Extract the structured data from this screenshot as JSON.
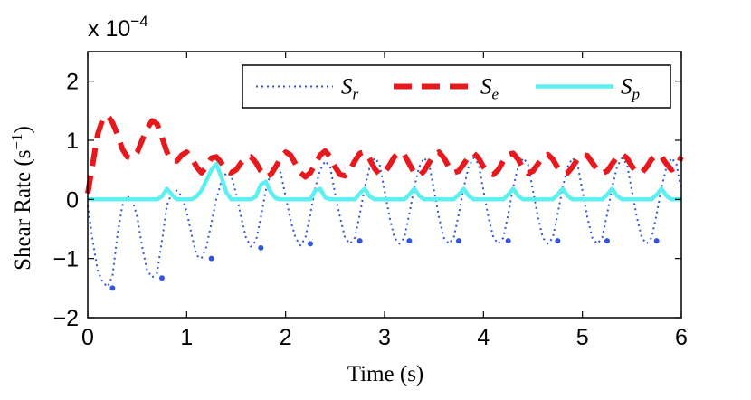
{
  "chart_data": {
    "type": "line",
    "xlabel": "Time (s)",
    "ylabel": "Shear Rate (s",
    "ylabel_sup": "−1",
    "ylabel_close": ")",
    "exponent_label": "x 10",
    "exponent_power": "−4",
    "xlim": [
      0,
      6
    ],
    "ylim": [
      -2,
      2.5
    ],
    "x_ticks": [
      0,
      1,
      2,
      3,
      4,
      5,
      6
    ],
    "x_tick_labels": [
      "0",
      "1",
      "2",
      "3",
      "4",
      "5",
      "6"
    ],
    "y_ticks": [
      -2,
      -1,
      0,
      1,
      2
    ],
    "y_tick_labels": [
      "−2",
      "−1",
      "0",
      "1",
      "2"
    ],
    "grid": false,
    "legend_position": "top-right",
    "series": [
      {
        "name": "S",
        "subscript": "r",
        "style": "dotted",
        "color": "#3355dd",
        "x": [
          0.0,
          0.05,
          0.1,
          0.15,
          0.2,
          0.25,
          0.3,
          0.35,
          0.4,
          0.45,
          0.5,
          0.55,
          0.6,
          0.65,
          0.7,
          0.75,
          0.8,
          0.85,
          0.9,
          0.95,
          1.0,
          1.05,
          1.1,
          1.15,
          1.2,
          1.25,
          1.3,
          1.35,
          1.4,
          1.45,
          1.5,
          1.55,
          1.6,
          1.65,
          1.7,
          1.75,
          1.8,
          1.85,
          1.9,
          1.95,
          2.0,
          2.05,
          2.1,
          2.15,
          2.2,
          2.25,
          2.3,
          2.35,
          2.4,
          2.45,
          2.5,
          2.55,
          2.6,
          2.65,
          2.7,
          2.75,
          2.8,
          2.85,
          2.9,
          2.95,
          3.0,
          3.05,
          3.1,
          3.15,
          3.2,
          3.25,
          3.3,
          3.35,
          3.4,
          3.45,
          3.5,
          3.55,
          3.6,
          3.65,
          3.7,
          3.75,
          3.8,
          3.85,
          3.9,
          3.95,
          4.0,
          4.05,
          4.1,
          4.15,
          4.2,
          4.25,
          4.3,
          4.35,
          4.4,
          4.45,
          4.5,
          4.55,
          4.6,
          4.65,
          4.7,
          4.75,
          4.8,
          4.85,
          4.9,
          4.95,
          5.0,
          5.05,
          5.1,
          5.15,
          5.2,
          5.25,
          5.3,
          5.35,
          5.4,
          5.45,
          5.5,
          5.55,
          5.6,
          5.65,
          5.7,
          5.75,
          5.8,
          5.85,
          5.9,
          5.95,
          6.0
        ],
        "values": [
          -0.1,
          -0.7,
          -1.2,
          -1.4,
          -1.48,
          -1.3,
          -0.6,
          -0.1,
          0.05,
          0.0,
          -0.3,
          -0.8,
          -1.2,
          -1.32,
          -1.25,
          -0.7,
          -0.1,
          0.1,
          0.15,
          0.05,
          -0.2,
          -0.6,
          -0.95,
          -1.0,
          -0.8,
          -0.4,
          0.0,
          0.3,
          0.45,
          0.4,
          0.1,
          -0.3,
          -0.65,
          -0.8,
          -0.7,
          -0.3,
          0.15,
          0.45,
          0.55,
          0.45,
          0.05,
          -0.35,
          -0.65,
          -0.78,
          -0.65,
          -0.25,
          0.2,
          0.5,
          0.65,
          0.55,
          0.1,
          -0.3,
          -0.65,
          -0.75,
          -0.65,
          -0.25,
          0.2,
          0.55,
          0.7,
          0.6,
          0.15,
          -0.3,
          -0.65,
          -0.75,
          -0.65,
          -0.25,
          0.2,
          0.55,
          0.7,
          0.6,
          0.15,
          -0.3,
          -0.65,
          -0.75,
          -0.65,
          -0.25,
          0.2,
          0.55,
          0.7,
          0.6,
          0.15,
          -0.3,
          -0.65,
          -0.75,
          -0.65,
          -0.25,
          0.2,
          0.55,
          0.7,
          0.6,
          0.15,
          -0.3,
          -0.65,
          -0.75,
          -0.65,
          -0.25,
          0.2,
          0.55,
          0.7,
          0.6,
          0.15,
          -0.3,
          -0.65,
          -0.75,
          -0.65,
          -0.25,
          0.2,
          0.55,
          0.7,
          0.6,
          0.15,
          -0.3,
          -0.65,
          -0.75,
          -0.65,
          -0.25,
          0.2,
          0.55,
          0.7,
          0.6,
          0.15
        ]
      },
      {
        "name": "S",
        "subscript": "e",
        "style": "dashed",
        "color": "#e8191c",
        "x": [
          0.0,
          0.05,
          0.1,
          0.15,
          0.2,
          0.25,
          0.3,
          0.35,
          0.4,
          0.45,
          0.5,
          0.55,
          0.6,
          0.65,
          0.7,
          0.75,
          0.8,
          0.85,
          0.9,
          0.95,
          1.0,
          1.05,
          1.1,
          1.15,
          1.2,
          1.25,
          1.3,
          1.35,
          1.4,
          1.45,
          1.5,
          1.55,
          1.6,
          1.65,
          1.7,
          1.75,
          1.8,
          1.85,
          1.9,
          1.95,
          2.0,
          2.05,
          2.1,
          2.15,
          2.2,
          2.25,
          2.3,
          2.35,
          2.4,
          2.45,
          2.5,
          2.55,
          2.6,
          2.65,
          2.7,
          2.75,
          2.8,
          2.85,
          2.9,
          2.95,
          3.0,
          3.05,
          3.1,
          3.15,
          3.2,
          3.25,
          3.3,
          3.35,
          3.4,
          3.45,
          3.5,
          3.55,
          3.6,
          3.65,
          3.7,
          3.75,
          3.8,
          3.85,
          3.9,
          3.95,
          4.0,
          4.05,
          4.1,
          4.15,
          4.2,
          4.25,
          4.3,
          4.35,
          4.4,
          4.45,
          4.5,
          4.55,
          4.6,
          4.65,
          4.7,
          4.75,
          4.8,
          4.85,
          4.9,
          4.95,
          5.0,
          5.05,
          5.1,
          5.15,
          5.2,
          5.25,
          5.3,
          5.35,
          5.4,
          5.45,
          5.5,
          5.55,
          5.6,
          5.65,
          5.7,
          5.75,
          5.8,
          5.85,
          5.9,
          5.95,
          6.0
        ],
        "values": [
          0.1,
          0.6,
          1.1,
          1.35,
          1.42,
          1.3,
          1.1,
          0.85,
          0.72,
          0.7,
          0.8,
          1.0,
          1.2,
          1.33,
          1.28,
          1.05,
          0.8,
          0.65,
          0.65,
          0.75,
          0.8,
          0.7,
          0.55,
          0.45,
          0.55,
          0.7,
          0.72,
          0.62,
          0.5,
          0.45,
          0.5,
          0.62,
          0.7,
          0.72,
          0.62,
          0.48,
          0.38,
          0.42,
          0.55,
          0.7,
          0.8,
          0.75,
          0.6,
          0.45,
          0.38,
          0.45,
          0.6,
          0.75,
          0.82,
          0.72,
          0.55,
          0.42,
          0.4,
          0.5,
          0.65,
          0.78,
          0.8,
          0.68,
          0.52,
          0.42,
          0.45,
          0.58,
          0.72,
          0.8,
          0.75,
          0.6,
          0.45,
          0.4,
          0.48,
          0.62,
          0.76,
          0.8,
          0.7,
          0.55,
          0.45,
          0.48,
          0.6,
          0.72,
          0.78,
          0.7,
          0.55,
          0.45,
          0.42,
          0.5,
          0.65,
          0.76,
          0.78,
          0.68,
          0.52,
          0.44,
          0.48,
          0.6,
          0.72,
          0.76,
          0.68,
          0.54,
          0.44,
          0.45,
          0.55,
          0.68,
          0.76,
          0.74,
          0.62,
          0.5,
          0.44,
          0.48,
          0.6,
          0.72,
          0.76,
          0.7,
          0.56,
          0.46,
          0.45,
          0.55,
          0.68,
          0.75,
          0.72,
          0.6,
          0.5,
          0.55,
          0.72
        ]
      },
      {
        "name": "S",
        "subscript": "p",
        "style": "solid",
        "color": "#5ef0f0",
        "x": [
          0.0,
          0.05,
          0.1,
          0.15,
          0.2,
          0.25,
          0.3,
          0.35,
          0.4,
          0.45,
          0.5,
          0.55,
          0.6,
          0.65,
          0.7,
          0.75,
          0.8,
          0.85,
          0.9,
          0.95,
          1.0,
          1.05,
          1.1,
          1.15,
          1.2,
          1.25,
          1.3,
          1.35,
          1.4,
          1.45,
          1.5,
          1.55,
          1.6,
          1.65,
          1.7,
          1.75,
          1.8,
          1.85,
          1.9,
          1.95,
          2.0,
          2.05,
          2.1,
          2.15,
          2.2,
          2.25,
          2.3,
          2.35,
          2.4,
          2.45,
          2.5,
          2.55,
          2.6,
          2.65,
          2.7,
          2.75,
          2.8,
          2.85,
          2.9,
          2.95,
          3.0,
          3.05,
          3.1,
          3.15,
          3.2,
          3.25,
          3.3,
          3.35,
          3.4,
          3.45,
          3.5,
          3.55,
          3.6,
          3.65,
          3.7,
          3.75,
          3.8,
          3.85,
          3.9,
          3.95,
          4.0,
          4.05,
          4.1,
          4.15,
          4.2,
          4.25,
          4.3,
          4.35,
          4.4,
          4.45,
          4.5,
          4.55,
          4.6,
          4.65,
          4.7,
          4.75,
          4.8,
          4.85,
          4.9,
          4.95,
          5.0,
          5.05,
          5.1,
          5.15,
          5.2,
          5.25,
          5.3,
          5.35,
          5.4,
          5.45,
          5.5,
          5.55,
          5.6,
          5.65,
          5.7,
          5.75,
          5.8,
          5.85,
          5.9,
          5.95,
          6.0
        ],
        "values": [
          0.0,
          0.0,
          0.0,
          0.0,
          0.0,
          0.0,
          0.0,
          0.0,
          0.0,
          0.0,
          0.0,
          0.0,
          0.0,
          0.0,
          0.0,
          0.05,
          0.18,
          0.08,
          0.0,
          0.0,
          0.0,
          0.0,
          0.05,
          0.15,
          0.32,
          0.5,
          0.6,
          0.38,
          0.12,
          0.0,
          0.0,
          0.0,
          0.0,
          0.0,
          0.05,
          0.25,
          0.3,
          0.12,
          0.02,
          0.0,
          0.0,
          0.0,
          0.0,
          0.0,
          0.0,
          0.0,
          0.15,
          0.18,
          0.03,
          0.0,
          0.0,
          0.0,
          0.0,
          0.0,
          0.0,
          0.1,
          0.18,
          0.05,
          0.0,
          0.0,
          0.0,
          0.0,
          0.0,
          0.0,
          0.0,
          0.08,
          0.18,
          0.06,
          0.0,
          0.0,
          0.0,
          0.0,
          0.0,
          0.0,
          0.0,
          0.08,
          0.18,
          0.06,
          0.0,
          0.0,
          0.0,
          0.0,
          0.0,
          0.0,
          0.0,
          0.08,
          0.18,
          0.06,
          0.0,
          0.0,
          0.0,
          0.0,
          0.0,
          0.0,
          0.0,
          0.08,
          0.18,
          0.06,
          0.0,
          0.0,
          0.0,
          0.0,
          0.0,
          0.0,
          0.0,
          0.08,
          0.18,
          0.06,
          0.0,
          0.0,
          0.0,
          0.0,
          0.0,
          0.0,
          0.0,
          0.08,
          0.18,
          0.06,
          0.0,
          0.0,
          0.0
        ]
      }
    ],
    "markers": {
      "series_index": 0,
      "x": [
        0.25,
        0.75,
        1.25,
        1.75,
        2.25,
        2.75,
        3.25,
        3.75,
        4.25,
        4.75,
        5.25,
        5.75
      ],
      "values": [
        -1.5,
        -1.33,
        -1.0,
        -0.82,
        -0.75,
        -0.7,
        -0.7,
        -0.7,
        -0.7,
        -0.7,
        -0.7,
        -0.7
      ]
    }
  }
}
